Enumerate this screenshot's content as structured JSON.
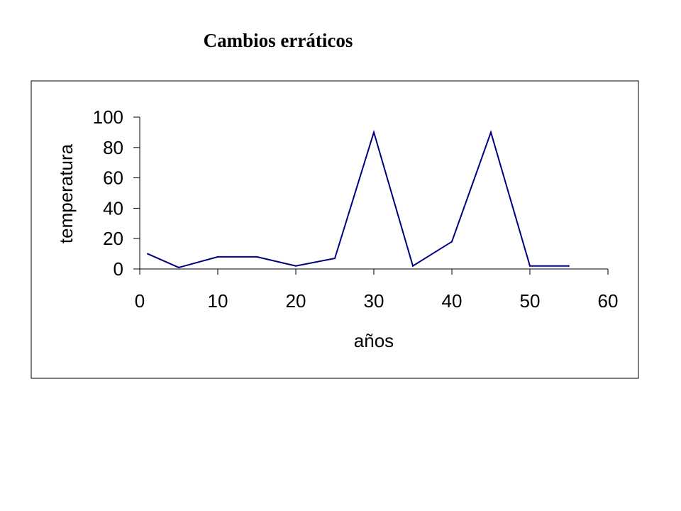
{
  "slide": {
    "title": "Cambios erráticos"
  },
  "chart_data": {
    "type": "line",
    "title": "",
    "xlabel": "años",
    "ylabel": "temperatura",
    "xlim": [
      0,
      60
    ],
    "ylim": [
      0,
      100
    ],
    "x_ticks": [
      "0",
      "10",
      "20",
      "30",
      "40",
      "50",
      "60"
    ],
    "y_ticks": [
      "0",
      "20",
      "40",
      "60",
      "80",
      "100"
    ],
    "grid": false,
    "legend": "none",
    "series": [
      {
        "color": "#000080",
        "x": [
          1,
          5,
          10,
          15,
          20,
          25,
          30,
          35,
          40,
          45,
          50,
          55
        ],
        "y": [
          10,
          1,
          8,
          8,
          2,
          7,
          90,
          2,
          18,
          90,
          2,
          2
        ]
      }
    ]
  }
}
